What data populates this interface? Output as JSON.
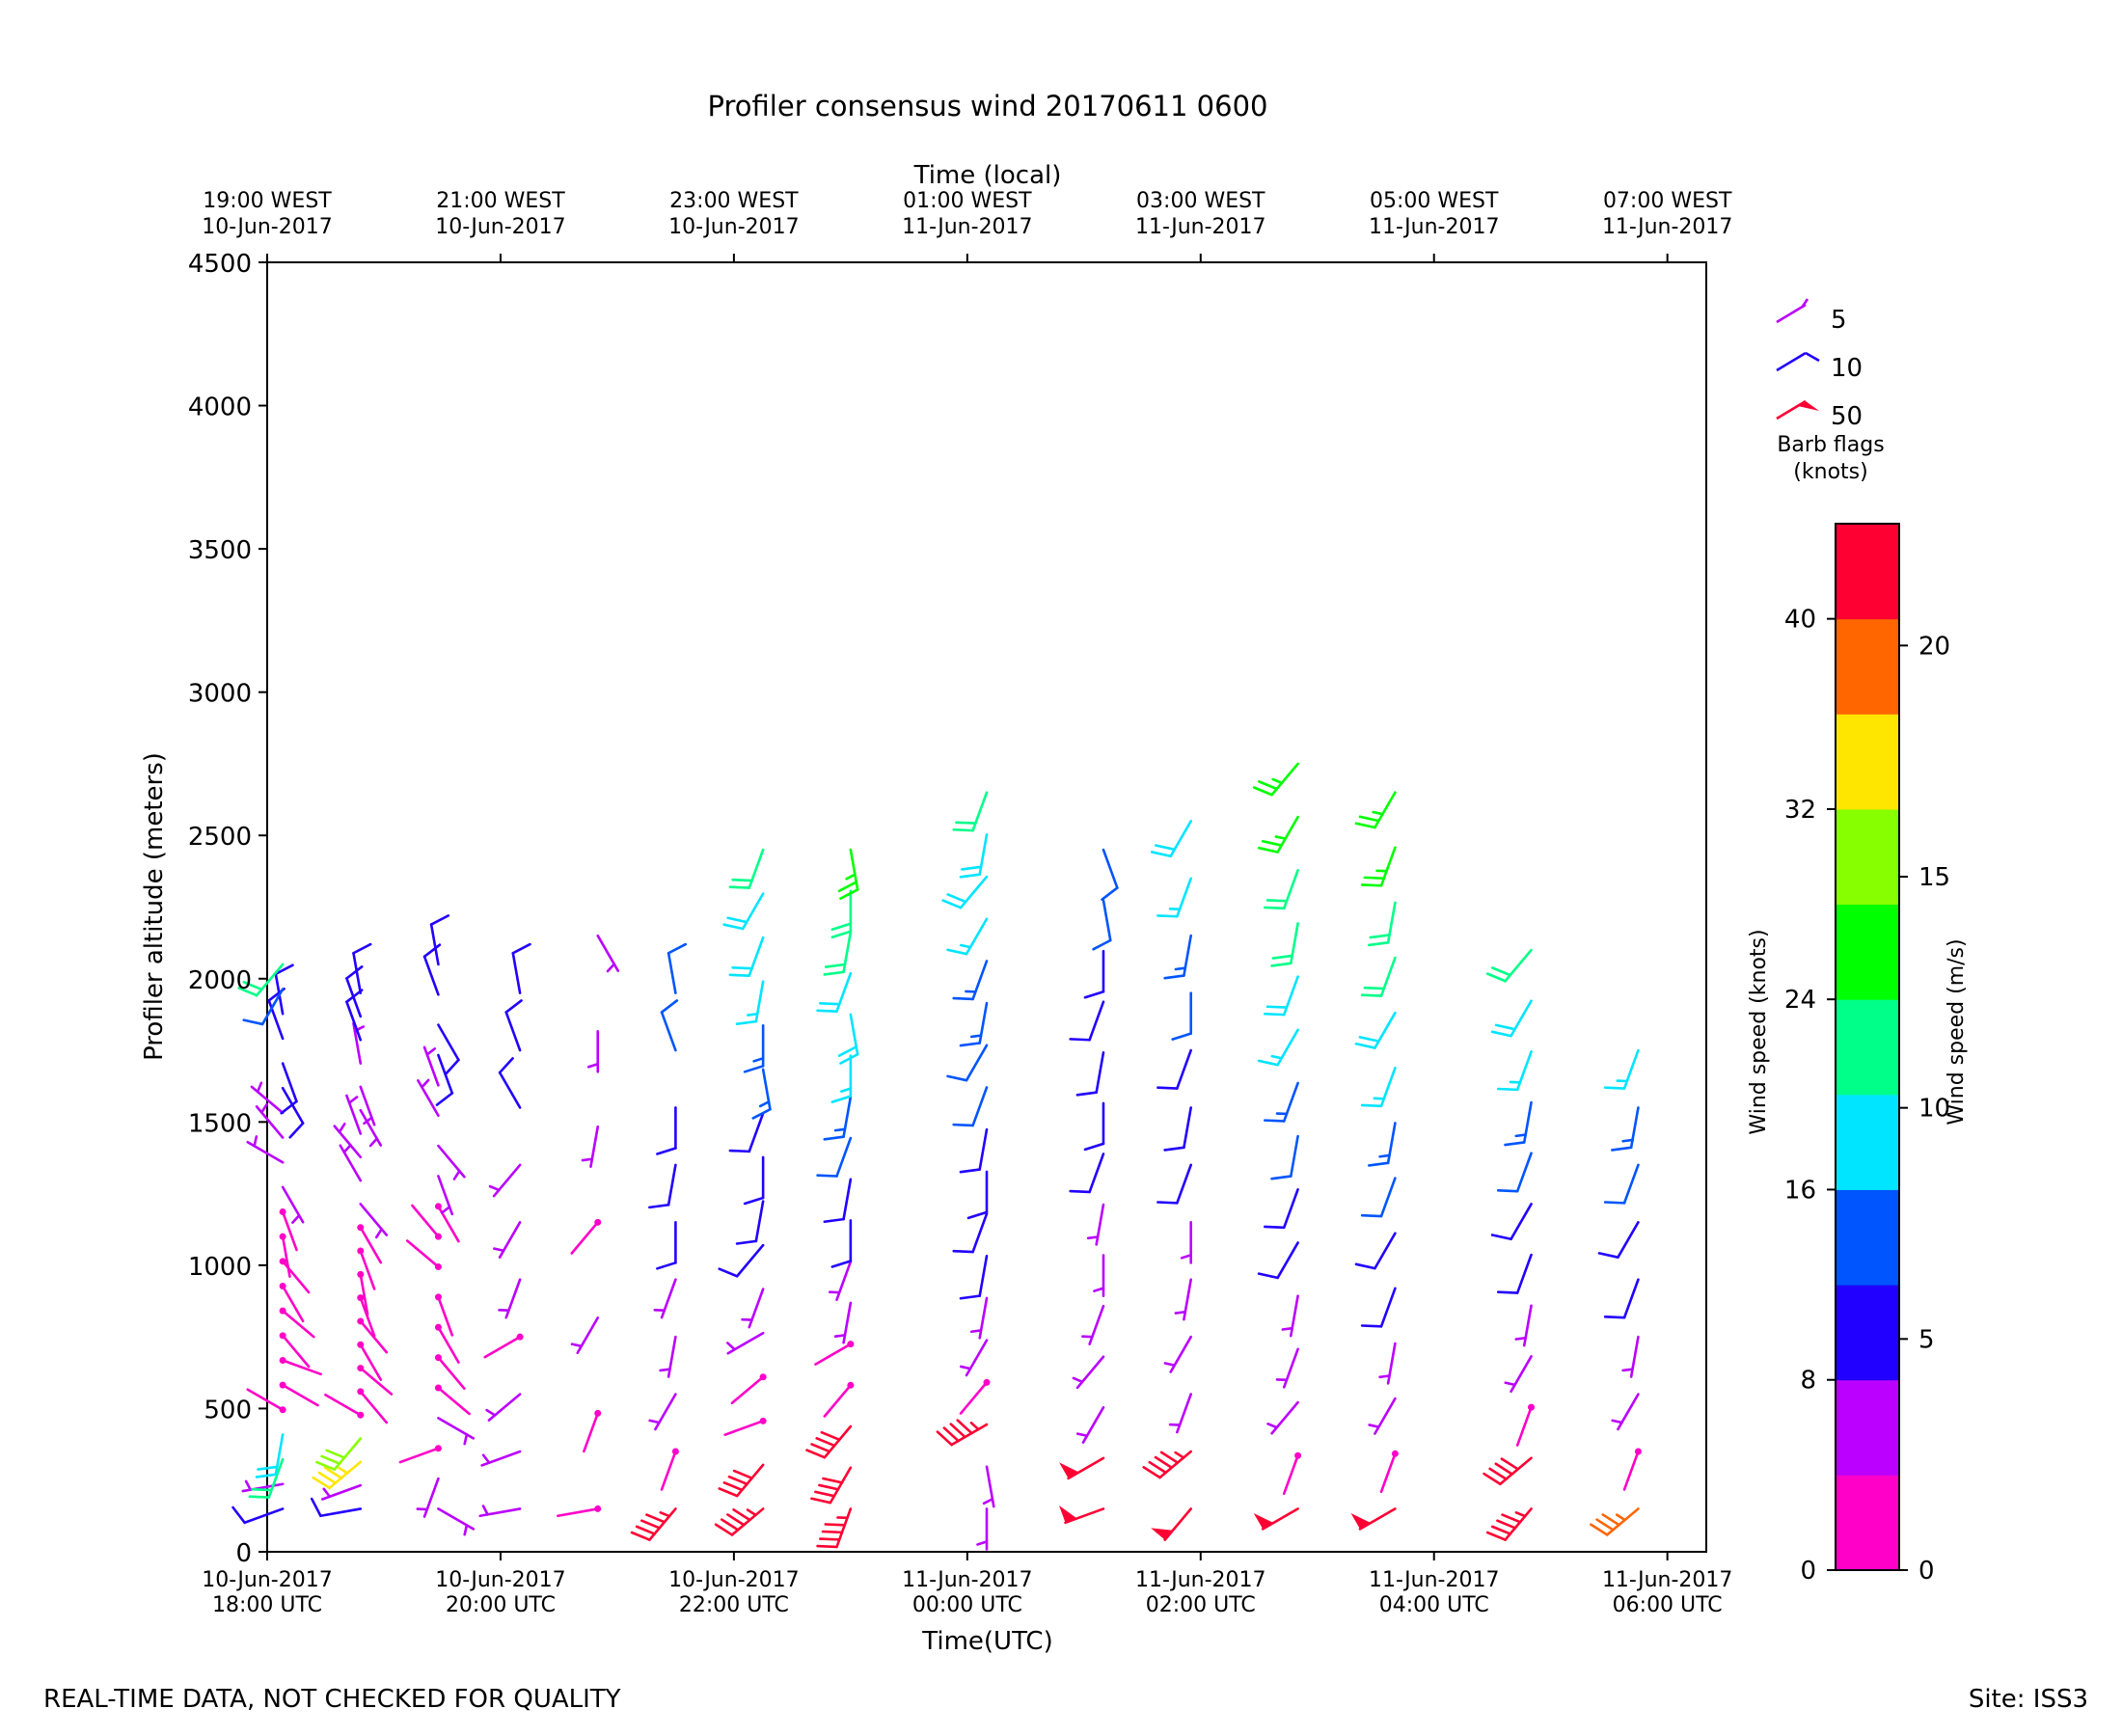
{
  "title": "Profiler consensus wind 20170611 0600",
  "footer": {
    "left": "REAL-TIME DATA, NOT CHECKED FOR QUALITY",
    "right": "Site: ISS3"
  },
  "colors": {
    "scale": [
      "#ff00c8",
      "#bb00ff",
      "#2200ff",
      "#0055ff",
      "#00e5ff",
      "#00ff88",
      "#00ff00",
      "#88ff00",
      "#ffe600",
      "#ff6600",
      "#ff0033"
    ]
  },
  "legend": {
    "items": [
      {
        "label": "5",
        "color": "#bb00ff",
        "icon": "half-barb-icon"
      },
      {
        "label": "10",
        "color": "#2200ff",
        "icon": "full-barb-icon"
      },
      {
        "label": "50",
        "color": "#ff0033",
        "icon": "flag-barb-icon"
      }
    ],
    "caption_line1": "Barb flags",
    "caption_line2": "(knots)"
  },
  "colorbar": {
    "knots_label": "Wind speed (knots)",
    "ms_label": "Wind speed (m/s)",
    "knots_ticks": [
      "0",
      "8",
      "16",
      "24",
      "32",
      "40"
    ],
    "ms_ticks": [
      "0",
      "5",
      "10",
      "15",
      "20"
    ],
    "range_knots": [
      0,
      44
    ]
  },
  "chart_data": {
    "type": "wind barbs",
    "title": "Profiler consensus wind 20170611 0600",
    "xlabel": "Time(UTC)",
    "x2label": "Time (local)",
    "ylabel": "Profiler altitude (meters)",
    "ylim": [
      0,
      4500
    ],
    "xlim_hours_utc": [
      "10-Jun-2017 18:00",
      "11-Jun-2017 06:20"
    ],
    "y_ticks": [
      "0",
      "500",
      "1000",
      "1500",
      "2000",
      "2500",
      "3000",
      "3500",
      "4000",
      "4500"
    ],
    "x_ticks": [
      {
        "line1": "10-Jun-2017",
        "line2": "18:00 UTC"
      },
      {
        "line1": "10-Jun-2017",
        "line2": "20:00 UTC"
      },
      {
        "line1": "10-Jun-2017",
        "line2": "22:00 UTC"
      },
      {
        "line1": "11-Jun-2017",
        "line2": "00:00 UTC"
      },
      {
        "line1": "11-Jun-2017",
        "line2": "02:00 UTC"
      },
      {
        "line1": "11-Jun-2017",
        "line2": "04:00 UTC"
      },
      {
        "line1": "11-Jun-2017",
        "line2": "06:00 UTC"
      }
    ],
    "x2_ticks": [
      {
        "line1": "19:00 WEST",
        "line2": "10-Jun-2017"
      },
      {
        "line1": "21:00 WEST",
        "line2": "10-Jun-2017"
      },
      {
        "line1": "23:00 WEST",
        "line2": "10-Jun-2017"
      },
      {
        "line1": "01:00 WEST",
        "line2": "11-Jun-2017"
      },
      {
        "line1": "03:00 WEST",
        "line2": "11-Jun-2017"
      },
      {
        "line1": "05:00 WEST",
        "line2": "11-Jun-2017"
      },
      {
        "line1": "07:00 WEST",
        "line2": "11-Jun-2017"
      }
    ],
    "profiles": [
      {
        "time_utc": "18:08",
        "tops_m": 2050,
        "speeds_kt": [
          10,
          5,
          20,
          18,
          0,
          0,
          0,
          0,
          0,
          0,
          2,
          2,
          2,
          4,
          4,
          4,
          4,
          8,
          8,
          8,
          8,
          12,
          20
        ],
        "dirs_deg": [
          250,
          260,
          200,
          190,
          300,
          120,
          110,
          140,
          130,
          150,
          140,
          170,
          160,
          150,
          300,
          320,
          310,
          150,
          160,
          340,
          350,
          210,
          220
        ]
      },
      {
        "time_utc": "18:48",
        "tops_m": 1950,
        "speeds_kt": [
          8,
          4,
          34,
          30,
          0,
          0,
          0,
          0,
          0,
          0,
          2,
          2,
          2,
          4,
          4,
          4,
          6,
          6,
          6,
          6,
          8,
          8,
          8
        ],
        "dirs_deg": [
          260,
          250,
          230,
          220,
          300,
          140,
          130,
          150,
          140,
          160,
          170,
          160,
          150,
          140,
          330,
          320,
          340,
          150,
          160,
          350,
          340,
          340,
          350
        ]
      },
      {
        "time_utc": "19:28",
        "tops_m": 2050,
        "speeds_kt": [
          4,
          6,
          2,
          4,
          0,
          0,
          0,
          0,
          0,
          2,
          2,
          4,
          4,
          6,
          6,
          8,
          8,
          8,
          8
        ],
        "dirs_deg": [
          120,
          200,
          250,
          120,
          130,
          140,
          150,
          160,
          310,
          320,
          150,
          160,
          140,
          330,
          340,
          160,
          150,
          340,
          350
        ]
      },
      {
        "time_utc": "20:10",
        "tops_m": 1950,
        "speeds_kt": [
          6,
          4,
          4,
          2,
          4,
          6,
          6,
          8,
          8,
          8
        ],
        "dirs_deg": [
          260,
          250,
          230,
          240,
          200,
          210,
          220,
          330,
          340,
          350
        ]
      },
      {
        "time_utc": "20:50",
        "tops_m": 2150,
        "speeds_kt": [
          2,
          2,
          4,
          2,
          4,
          4,
          6
        ],
        "dirs_deg": [
          260,
          200,
          210,
          220,
          190,
          180,
          150
        ]
      },
      {
        "time_utc": "21:30",
        "tops_m": 1950,
        "speeds_kt": [
          44,
          2,
          4,
          6,
          6,
          8,
          10,
          10,
          12,
          12
        ],
        "dirs_deg": [
          220,
          200,
          210,
          190,
          200,
          180,
          190,
          180,
          340,
          350
        ]
      },
      {
        "time_utc": "22:15",
        "tops_m": 2450,
        "speeds_kt": [
          44,
          40,
          2,
          2,
          4,
          6,
          8,
          8,
          10,
          10,
          14,
          14,
          16,
          18,
          18,
          22
        ],
        "dirs_deg": [
          230,
          220,
          250,
          230,
          240,
          200,
          220,
          190,
          180,
          200,
          170,
          180,
          190,
          200,
          210,
          200
        ]
      },
      {
        "time_utc": "23:00",
        "tops_m": 2450,
        "speeds_kt": [
          44,
          42,
          40,
          2,
          2,
          4,
          6,
          8,
          10,
          12,
          14,
          16,
          18,
          18,
          20,
          22,
          24
        ],
        "dirs_deg": [
          200,
          210,
          220,
          220,
          240,
          190,
          200,
          180,
          190,
          200,
          190,
          180,
          170,
          200,
          190,
          180,
          170
        ]
      },
      {
        "time_utc": "00:10",
        "tops_m": 2650,
        "speeds_kt": [
          4,
          4,
          46,
          2,
          4,
          6,
          8,
          8,
          10,
          10,
          12,
          12,
          14,
          14,
          16,
          18,
          18,
          20
        ],
        "dirs_deg": [
          180,
          170,
          240,
          220,
          210,
          190,
          190,
          200,
          180,
          190,
          200,
          210,
          190,
          200,
          210,
          220,
          190,
          200
        ]
      },
      {
        "time_utc": "01:10",
        "tops_m": 2450,
        "speeds_kt": [
          50,
          48,
          6,
          4,
          4,
          6,
          6,
          8,
          8,
          8,
          10,
          10,
          12,
          12
        ],
        "dirs_deg": [
          250,
          240,
          210,
          220,
          200,
          180,
          190,
          200,
          180,
          190,
          200,
          180,
          170,
          160
        ]
      },
      {
        "time_utc": "01:55",
        "tops_m": 2550,
        "speeds_kt": [
          48,
          46,
          4,
          4,
          6,
          6,
          8,
          8,
          10,
          12,
          14,
          16,
          18
        ],
        "dirs_deg": [
          220,
          230,
          200,
          210,
          190,
          180,
          200,
          190,
          200,
          180,
          190,
          200,
          210
        ]
      },
      {
        "time_utc": "02:50",
        "tops_m": 2750,
        "speeds_kt": [
          50,
          2,
          4,
          6,
          6,
          8,
          10,
          12,
          14,
          16,
          18,
          20,
          22,
          24,
          26
        ],
        "dirs_deg": [
          240,
          200,
          220,
          200,
          190,
          210,
          200,
          190,
          200,
          210,
          200,
          190,
          200,
          210,
          220
        ]
      },
      {
        "time_utc": "03:40",
        "tops_m": 2650,
        "speeds_kt": [
          48,
          2,
          4,
          6,
          8,
          10,
          12,
          14,
          16,
          18,
          20,
          22,
          24,
          26
        ],
        "dirs_deg": [
          240,
          200,
          210,
          190,
          200,
          210,
          200,
          190,
          200,
          210,
          200,
          190,
          200,
          210
        ]
      },
      {
        "time_utc": "04:50",
        "tops_m": 2100,
        "speeds_kt": [
          46,
          42,
          2,
          4,
          6,
          8,
          10,
          12,
          14,
          16,
          18,
          20
        ],
        "dirs_deg": [
          220,
          230,
          200,
          210,
          190,
          200,
          210,
          200,
          190,
          200,
          210,
          220
        ]
      },
      {
        "time_utc": "05:45",
        "tops_m": 1750,
        "speeds_kt": [
          36,
          2,
          4,
          6,
          8,
          10,
          12,
          14,
          16
        ],
        "dirs_deg": [
          230,
          200,
          210,
          190,
          200,
          210,
          200,
          190,
          200
        ]
      }
    ]
  }
}
